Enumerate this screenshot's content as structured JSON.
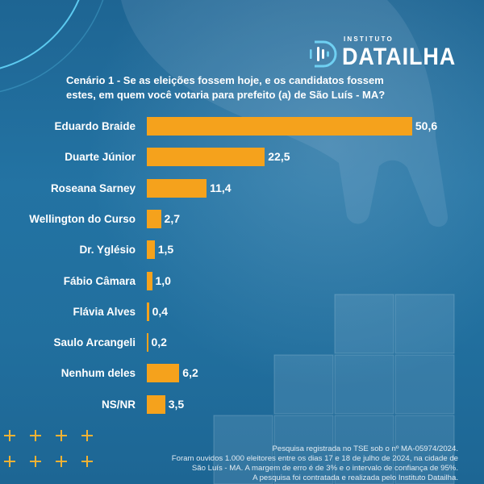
{
  "logo": {
    "line1": "INSTITUTO",
    "line2": "DATAILHA"
  },
  "chart_data": {
    "type": "bar",
    "orientation": "horizontal",
    "title_lines": [
      "Cenário 1 - Se as eleições fossem hoje, e os candidatos fossem",
      "estes, em quem você votaria para prefeito (a) de São Luís - MA?"
    ],
    "categories": [
      "Eduardo Braide",
      "Duarte Júnior",
      "Roseana Sarney",
      "Wellington do Curso",
      "Dr. Yglésio",
      "Fábio Câmara",
      "Flávia Alves",
      "Saulo Arcangeli",
      "Nenhum deles",
      "NS/NR"
    ],
    "values": [
      50.6,
      22.5,
      11.4,
      2.7,
      1.5,
      1.0,
      0.4,
      0.2,
      6.2,
      3.5
    ],
    "value_labels": [
      "50,6",
      "22,5",
      "11,4",
      "2,7",
      "1,5",
      "1,0",
      "0,4",
      "0,2",
      "6,2",
      "3,5"
    ],
    "axis_visible": false,
    "grid": false
  },
  "footer": {
    "lines": [
      "Pesquisa registrada no TSE sob o nº MA-05974/2024.",
      "Foram ouvidos 1.000 eleitores entre os dias 17 e 18 de julho de 2024, na cidade de",
      "São Luís - MA. A margem de erro é de 3% e o intervalo de confiança de 95%.",
      "A pesquisa foi contratada e realizada pelo Instituto Datailha."
    ]
  },
  "icons": {
    "logo": "datailha-logo-icon",
    "decoration": "plus-icon"
  },
  "colors": {
    "background": "#216f9e",
    "bar": "#f5a21c",
    "text": "#ffffff",
    "logo_accent": "#6fd0f2",
    "plus": "#f2b233"
  }
}
